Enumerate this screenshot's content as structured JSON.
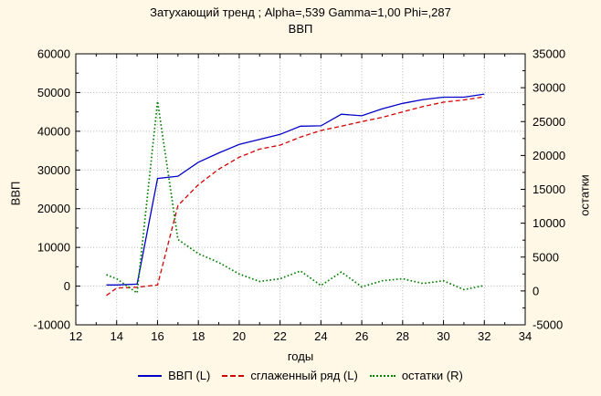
{
  "colors": {
    "background": "#FFF8E7",
    "plot_background": "#FFFFFF",
    "axis": "#000000",
    "gridline": "#B3B3B3",
    "series_vvp": "#0000C8",
    "series_smoothed": "#D40000",
    "series_residuals": "#007F00"
  },
  "chart_data": {
    "type": "line",
    "title": "Затухающий тренд ; Alpha=,539 Gamma=1,00 Phi=,287",
    "subtitle": "ВВП",
    "xlabel": "годы",
    "ylabel_left": "ВВП",
    "ylabel_right": "остатки",
    "xlim": [
      12,
      34
    ],
    "ylim_left": [
      -10000,
      60000
    ],
    "ylim_right": [
      -5000,
      35000
    ],
    "x_ticks": [
      12,
      14,
      16,
      18,
      20,
      22,
      24,
      26,
      28,
      30,
      32,
      34
    ],
    "y_ticks_left": [
      -10000,
      0,
      10000,
      20000,
      30000,
      40000,
      50000,
      60000
    ],
    "y_ticks_right": [
      -5000,
      0,
      5000,
      10000,
      15000,
      20000,
      25000,
      30000,
      35000
    ],
    "grid": "dotted gray at labeled x ticks and left-axis y ticks",
    "legend_position": "bottom",
    "x": [
      13.5,
      14,
      15,
      16,
      17,
      18,
      19,
      20,
      21,
      22,
      23,
      24,
      25,
      26,
      27,
      28,
      29,
      30,
      31,
      32
    ],
    "series": [
      {
        "name": "ВВП (L)",
        "axis": "left",
        "color": "#0000C8",
        "style": "solid",
        "values": [
          300,
          300,
          500,
          27800,
          28400,
          32000,
          34400,
          36600,
          37900,
          39200,
          41300,
          41400,
          44400,
          44000,
          45800,
          47200,
          48200,
          48800,
          48800,
          49600
        ]
      },
      {
        "name": "сглаженный ряд (L)",
        "axis": "left",
        "color": "#D40000",
        "style": "dashed",
        "values": [
          -2400,
          -500,
          -300,
          300,
          20800,
          26200,
          30200,
          33300,
          35400,
          36400,
          38500,
          40200,
          41300,
          42500,
          43600,
          45000,
          46400,
          47500,
          48100,
          48900
        ]
      },
      {
        "name": "остатки (R)",
        "axis": "right",
        "color": "#007F00",
        "style": "dotted",
        "values": [
          2400,
          1800,
          -300,
          28000,
          7600,
          5500,
          4200,
          2500,
          1400,
          1800,
          2950,
          800,
          2800,
          600,
          1500,
          1800,
          1100,
          1500,
          200,
          800
        ]
      }
    ]
  }
}
